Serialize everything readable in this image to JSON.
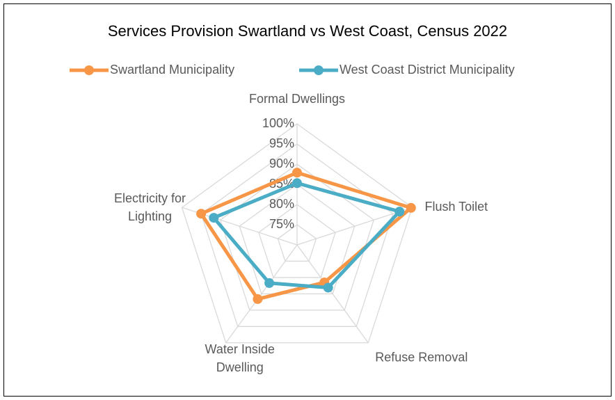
{
  "chart_data": {
    "type": "radar",
    "title": "Services Provision Swartland vs West Coast, Census 2022",
    "categories": [
      "Formal Dwellings",
      "Flush Toilet",
      "Refuse Removal",
      "Water Inside Dwelling",
      "Electricity for Lighting"
    ],
    "series": [
      {
        "name": "Swartland Municipality",
        "color": "#f79646",
        "values": [
          87.9,
          99.7,
          81.5,
          86.6,
          95.0
        ]
      },
      {
        "name": "West Coast District Municipality",
        "color": "#4bacc6",
        "values": [
          85.3,
          96.7,
          83.1,
          81.7,
          91.7
        ]
      }
    ],
    "ylim": [
      70,
      100
    ],
    "yticks": [
      {
        "value": 75,
        "label": "75%"
      },
      {
        "value": 80,
        "label": "80%"
      },
      {
        "value": 85,
        "label": "85%"
      },
      {
        "value": 90,
        "label": "90%"
      },
      {
        "value": 95,
        "label": "95%"
      },
      {
        "value": 100,
        "label": "100%"
      }
    ],
    "grid": true,
    "legend": "top"
  }
}
